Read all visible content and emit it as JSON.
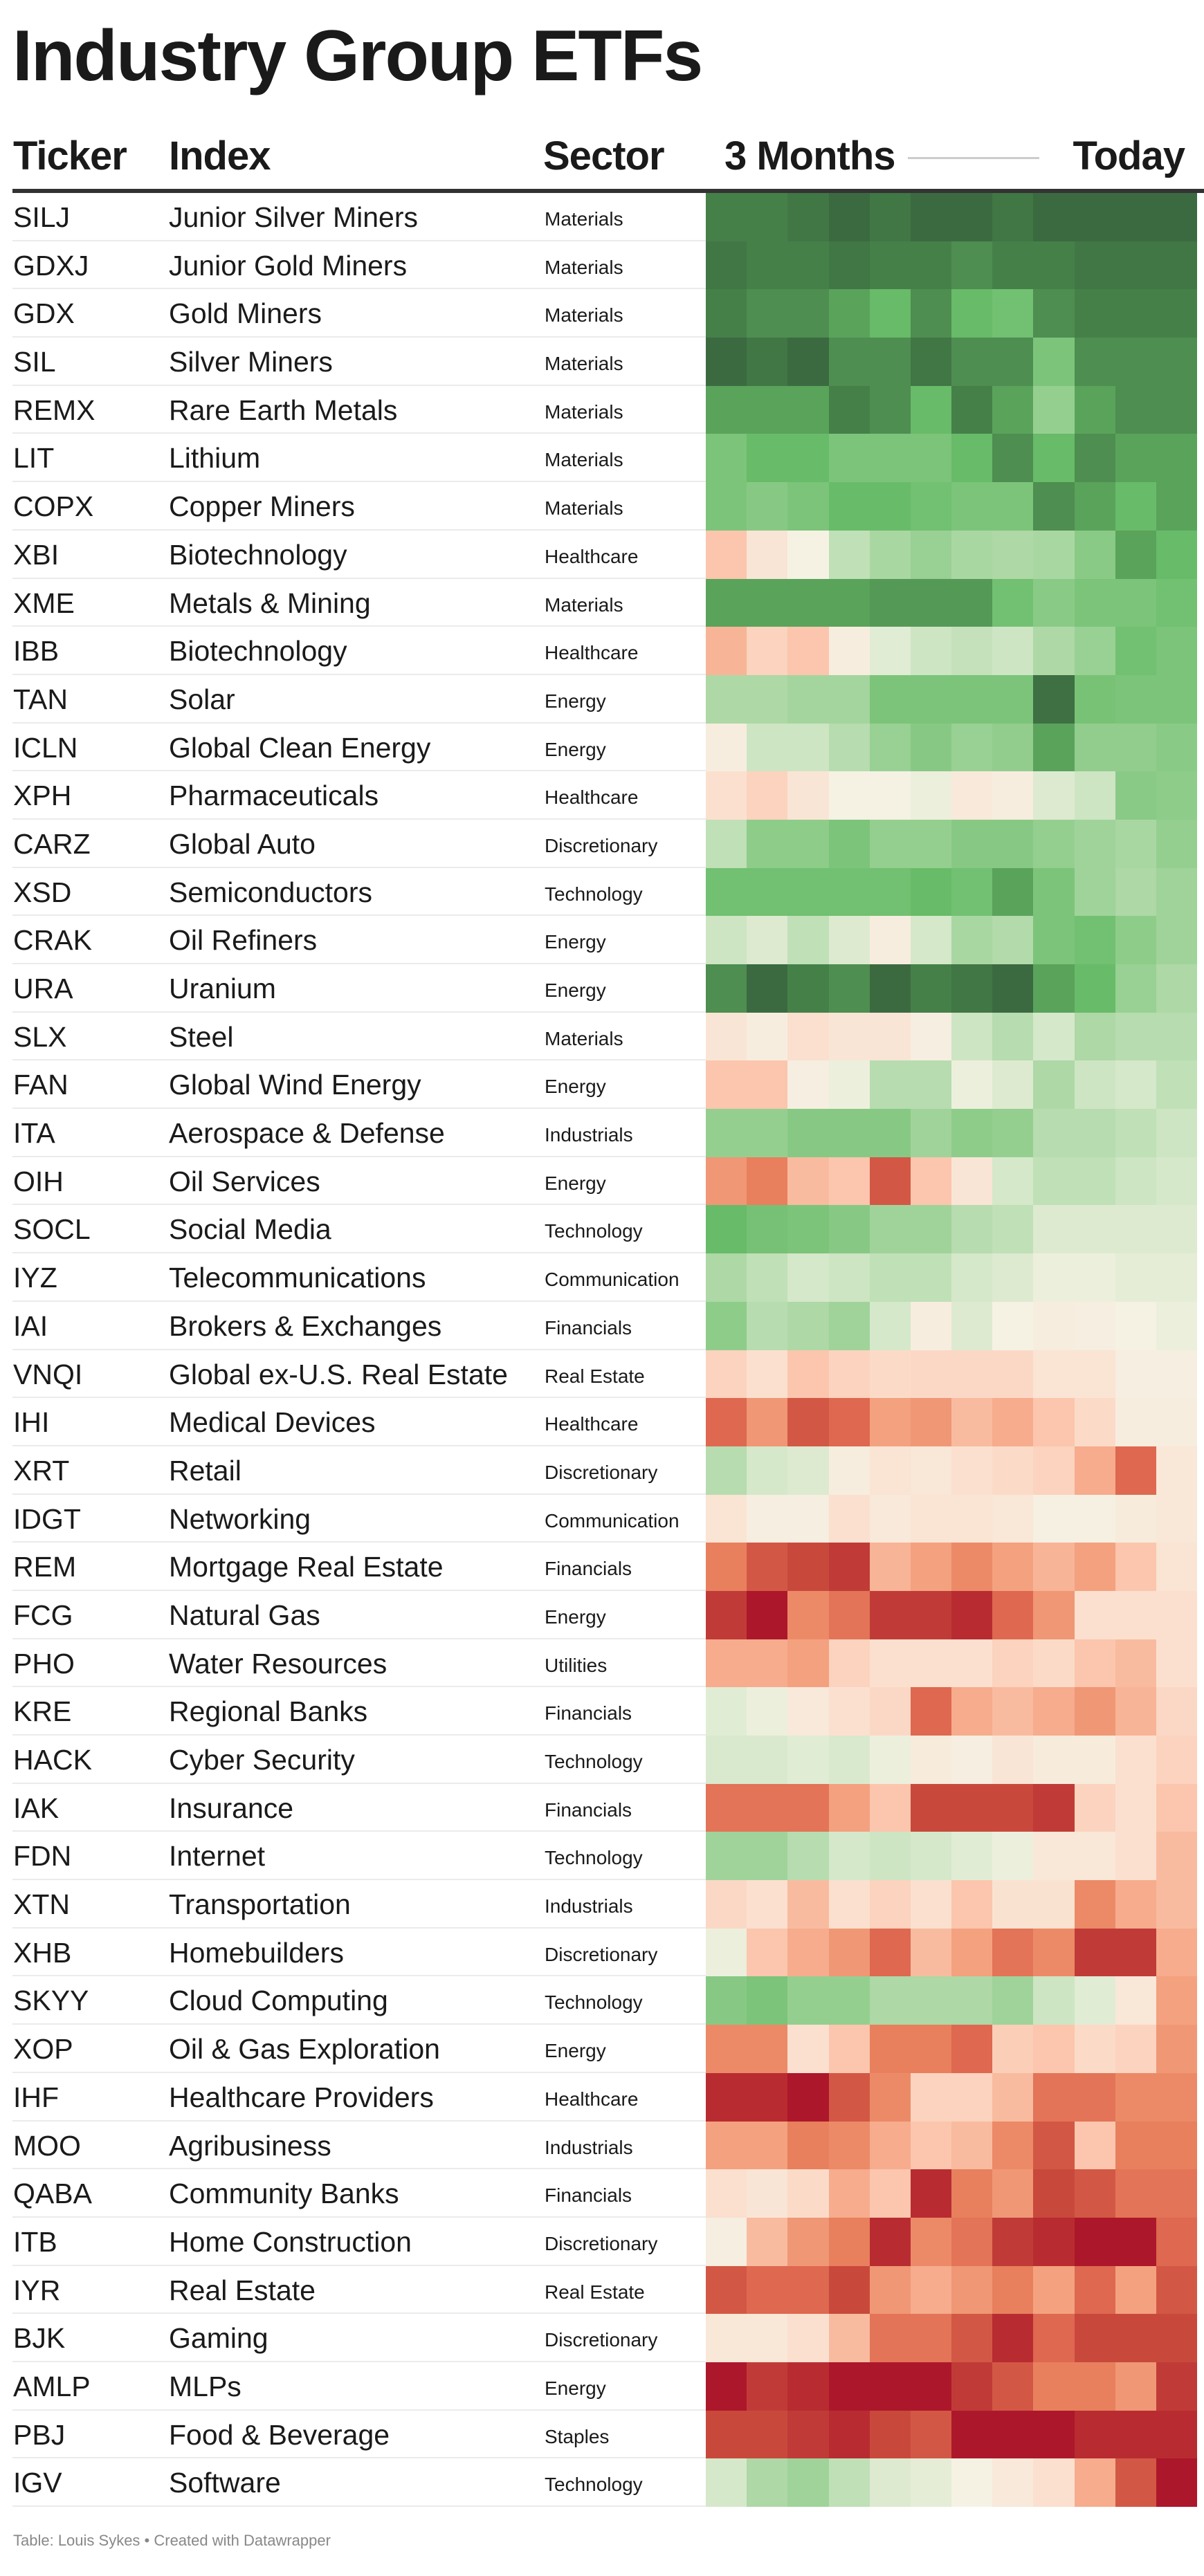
{
  "title": "Industry Group ETFs",
  "header": {
    "ticker": "Ticker",
    "index": "Index",
    "sector": "Sector",
    "start": "3 Months",
    "end": "Today"
  },
  "footer": "Table: Louis Sykes • Created with Datawrapper",
  "chart_data": {
    "type": "heatmap",
    "title": "Industry Group ETFs",
    "columns_from": "3 Months",
    "columns_to": "Today",
    "periods": 12,
    "color_scale": {
      "negative": "#ad172b",
      "neutral": "#f5f2e4",
      "positive": "#3b6a41"
    },
    "value_note_scale": [
      -9,
      9
    ],
    "rows": [
      {
        "ticker": "SILJ",
        "index": "Junior Silver Miners",
        "sector": "Materials",
        "values": [
          7,
          7,
          8,
          9,
          8,
          9,
          9,
          8,
          9,
          9,
          9,
          9
        ]
      },
      {
        "ticker": "GDXJ",
        "index": "Junior Gold Miners",
        "sector": "Materials",
        "values": [
          8,
          7,
          7,
          8,
          7,
          7,
          6,
          7,
          7,
          8,
          8,
          8
        ]
      },
      {
        "ticker": "GDX",
        "index": "Gold Miners",
        "sector": "Materials",
        "values": [
          7,
          6,
          6,
          5,
          4,
          6,
          4,
          3.5,
          6,
          7,
          7,
          7
        ]
      },
      {
        "ticker": "SIL",
        "index": "Silver Miners",
        "sector": "Materials",
        "values": [
          9,
          8,
          9,
          6,
          6,
          8,
          6,
          6,
          3,
          6,
          6,
          6
        ]
      },
      {
        "ticker": "REMX",
        "index": "Rare Earth Metals",
        "sector": "Materials",
        "values": [
          5,
          5,
          5,
          7,
          6,
          4,
          7,
          5,
          2.3,
          5,
          6,
          6
        ]
      },
      {
        "ticker": "LIT",
        "index": "Lithium",
        "sector": "Materials",
        "values": [
          3,
          4,
          4,
          3,
          3,
          3,
          4,
          6,
          4,
          6,
          5,
          5
        ]
      },
      {
        "ticker": "COPX",
        "index": "Copper Miners",
        "sector": "Materials",
        "values": [
          3,
          2.7,
          3,
          4,
          4,
          3.5,
          3,
          3,
          6,
          5,
          4,
          5
        ]
      },
      {
        "ticker": "XBI",
        "index": "Biotechnology",
        "sector": "Healthcare",
        "values": [
          -2,
          -0.7,
          0,
          1.3,
          1.8,
          2.2,
          1.8,
          1.7,
          1.8,
          2.6,
          5,
          4
        ]
      },
      {
        "ticker": "XME",
        "index": "Metals & Mining",
        "sector": "Materials",
        "values": [
          5,
          5,
          5,
          5,
          5.5,
          5.5,
          5.5,
          3.5,
          2.6,
          3,
          3,
          3.5
        ]
      },
      {
        "ticker": "IBB",
        "index": "Biotechnology",
        "sector": "Healthcare",
        "values": [
          -2.5,
          -1.5,
          -2,
          -0.3,
          0.5,
          1,
          1.2,
          1,
          1.7,
          2.2,
          3.5,
          3
        ]
      },
      {
        "ticker": "TAN",
        "index": "Solar",
        "sector": "Energy",
        "values": [
          1.7,
          1.7,
          1.9,
          1.9,
          3,
          3,
          3,
          3,
          8.5,
          3.2,
          3,
          3
        ]
      },
      {
        "ticker": "ICLN",
        "index": "Global Clean Energy",
        "sector": "Energy",
        "values": [
          -0.3,
          1,
          1,
          1.5,
          2.2,
          2.7,
          2.2,
          2.4,
          5,
          2.4,
          2.4,
          2.6
        ]
      },
      {
        "ticker": "XPH",
        "index": "Pharmaceuticals",
        "sector": "Healthcare",
        "values": [
          -1,
          -1.5,
          -0.7,
          0,
          0,
          0.2,
          -0.5,
          -0.3,
          0.6,
          1,
          2.6,
          2.5
        ]
      },
      {
        "ticker": "CARZ",
        "index": "Global Auto",
        "sector": "Discretionary",
        "values": [
          1.3,
          2.5,
          2.5,
          3,
          2.3,
          2.3,
          2.7,
          2.7,
          2.3,
          2,
          1.8,
          2.3
        ]
      },
      {
        "ticker": "XSD",
        "index": "Semiconductors",
        "sector": "Technology",
        "values": [
          3.5,
          3.5,
          3.5,
          3.5,
          3.5,
          4,
          3.5,
          5,
          3,
          2,
          1.7,
          2
        ]
      },
      {
        "ticker": "CRAK",
        "index": "Oil Refiners",
        "sector": "Energy",
        "values": [
          1,
          0.6,
          1.3,
          0.6,
          -0.3,
          0.8,
          1.8,
          1.6,
          3,
          3.5,
          2.5,
          2
        ]
      },
      {
        "ticker": "URA",
        "index": "Uranium",
        "sector": "Energy",
        "values": [
          6,
          9,
          7,
          6,
          9,
          7,
          8,
          9,
          5,
          4,
          2.2,
          1.7
        ]
      },
      {
        "ticker": "SLX",
        "index": "Steel",
        "sector": "Materials",
        "values": [
          -0.7,
          -0.3,
          -1,
          -0.7,
          -0.7,
          -0.2,
          1,
          1.5,
          0.8,
          1.7,
          1.5,
          1.5
        ]
      },
      {
        "ticker": "FAN",
        "index": "Global Wind Energy",
        "sector": "Energy",
        "values": [
          -2,
          -2,
          -0.2,
          0.2,
          1.5,
          1.5,
          0.2,
          0.6,
          1.7,
          1,
          0.8,
          1.3
        ]
      },
      {
        "ticker": "ITA",
        "index": "Aerospace & Defense",
        "sector": "Industrials",
        "values": [
          2.3,
          2.3,
          2.7,
          2.7,
          2.7,
          2,
          2.5,
          2.3,
          1.5,
          1.5,
          1.3,
          1
        ]
      },
      {
        "ticker": "OIH",
        "index": "Oil Services",
        "sector": "Energy",
        "values": [
          -3.3,
          -4,
          -2.3,
          -2,
          -6,
          -2,
          -0.7,
          0.8,
          1.3,
          1.3,
          1,
          0.8
        ]
      },
      {
        "ticker": "SOCL",
        "index": "Social Media",
        "sector": "Technology",
        "values": [
          4,
          3.3,
          3,
          2.7,
          2,
          2,
          1.5,
          1.3,
          0.6,
          0.6,
          0.6,
          0.6
        ]
      },
      {
        "ticker": "IYZ",
        "index": "Telecommunications",
        "sector": "Communication",
        "values": [
          1.7,
          1.3,
          0.8,
          1,
          1.3,
          1.3,
          0.8,
          0.6,
          0.2,
          0.2,
          0.4,
          0.4
        ]
      },
      {
        "ticker": "IAI",
        "index": "Brokers & Exchanges",
        "sector": "Financials",
        "values": [
          2.5,
          1.5,
          1.7,
          2,
          0.8,
          -0.3,
          0.6,
          0,
          -0.3,
          -0.2,
          0,
          0.2
        ]
      },
      {
        "ticker": "VNQI",
        "index": "Global ex-U.S. Real Estate",
        "sector": "Real Estate",
        "values": [
          -1.5,
          -1,
          -2,
          -1.5,
          -1.2,
          -1.3,
          -1.3,
          -1.3,
          -0.8,
          -0.8,
          -0.2,
          -0.2
        ]
      },
      {
        "ticker": "IHI",
        "index": "Medical Devices",
        "sector": "Healthcare",
        "values": [
          -5,
          -3.3,
          -6,
          -5,
          -3,
          -3.3,
          -2.3,
          -2.7,
          -2,
          -1.2,
          -0.3,
          -0.3
        ]
      },
      {
        "ticker": "XRT",
        "index": "Retail",
        "sector": "Discretionary",
        "values": [
          1.5,
          0.8,
          0.6,
          -0.3,
          -0.8,
          -0.6,
          -1,
          -1.2,
          -1.5,
          -2.7,
          -5,
          -0.6
        ]
      },
      {
        "ticker": "IDGT",
        "index": "Networking",
        "sector": "Communication",
        "values": [
          -0.8,
          -0.2,
          -0.2,
          -1,
          -0.5,
          -0.8,
          -0.8,
          -0.6,
          -0.1,
          -0.1,
          -0.4,
          -0.6
        ]
      },
      {
        "ticker": "REM",
        "index": "Mortgage Real Estate",
        "sector": "Financials",
        "values": [
          -4,
          -6,
          -7,
          -7.5,
          -2.5,
          -3,
          -3.7,
          -3,
          -2.5,
          -3,
          -2,
          -0.8
        ]
      },
      {
        "ticker": "FCG",
        "index": "Natural Gas",
        "sector": "Energy",
        "values": [
          -7.5,
          -9,
          -3.7,
          -4.5,
          -7.5,
          -7.5,
          -8,
          -5,
          -3.3,
          -1,
          -1,
          -1
        ]
      },
      {
        "ticker": "PHO",
        "index": "Water Resources",
        "sector": "Utilities",
        "values": [
          -2.7,
          -2.7,
          -3,
          -1.5,
          -1,
          -1,
          -1,
          -1.5,
          -1.2,
          -2,
          -2.3,
          -1
        ]
      },
      {
        "ticker": "KRE",
        "index": "Regional Banks",
        "sector": "Financials",
        "values": [
          0.5,
          0.2,
          -0.5,
          -1,
          -1.3,
          -5,
          -2.7,
          -2.3,
          -2.7,
          -3.3,
          -2.5,
          -1.3
        ]
      },
      {
        "ticker": "HACK",
        "index": "Cyber Security",
        "sector": "Technology",
        "values": [
          0.7,
          0.7,
          0.5,
          0.7,
          0.2,
          -0.4,
          -0.2,
          -0.7,
          -0.4,
          -0.4,
          -1,
          -1.5
        ]
      },
      {
        "ticker": "IAK",
        "index": "Insurance",
        "sector": "Financials",
        "values": [
          -4.5,
          -4.5,
          -4.5,
          -3,
          -2,
          -7,
          -7,
          -7,
          -7.5,
          -1.5,
          -1,
          -2
        ]
      },
      {
        "ticker": "FDN",
        "index": "Internet",
        "sector": "Technology",
        "values": [
          2,
          2,
          1.5,
          0.8,
          1,
          0.8,
          0.5,
          0.2,
          -0.6,
          -0.6,
          -1,
          -2.3
        ]
      },
      {
        "ticker": "XTN",
        "index": "Transportation",
        "sector": "Industrials",
        "values": [
          -1.3,
          -1,
          -2.3,
          -1,
          -1.5,
          -1,
          -2,
          -0.9,
          -0.9,
          -3.7,
          -2.7,
          -2.3
        ]
      },
      {
        "ticker": "XHB",
        "index": "Homebuilders",
        "sector": "Discretionary",
        "values": [
          0.2,
          -2,
          -2.7,
          -3.3,
          -5,
          -2.3,
          -3,
          -4.5,
          -3.7,
          -7.5,
          -7.5,
          -2.7
        ]
      },
      {
        "ticker": "SKYY",
        "index": "Cloud Computing",
        "sector": "Technology",
        "values": [
          2.7,
          3,
          2.3,
          2.3,
          1.7,
          1.7,
          1.7,
          2,
          1,
          0.5,
          -0.6,
          -3
        ]
      },
      {
        "ticker": "XOP",
        "index": "Oil & Gas Exploration",
        "sector": "Energy",
        "values": [
          -3.7,
          -3.7,
          -1,
          -2,
          -4,
          -4,
          -5,
          -1.7,
          -2,
          -1.2,
          -1.5,
          -3.3
        ]
      },
      {
        "ticker": "IHF",
        "index": "Healthcare Providers",
        "sector": "Healthcare",
        "values": [
          -8,
          -8,
          -9,
          -6,
          -3.7,
          -1.5,
          -1.5,
          -2.3,
          -4.5,
          -4.5,
          -3.7,
          -3.7
        ]
      },
      {
        "ticker": "MOO",
        "index": "Agribusiness",
        "sector": "Industrials",
        "values": [
          -3,
          -3,
          -4,
          -3.7,
          -2.7,
          -2,
          -2.3,
          -3.7,
          -6,
          -2,
          -4,
          -4
        ]
      },
      {
        "ticker": "QABA",
        "index": "Community Banks",
        "sector": "Financials",
        "values": [
          -1,
          -0.7,
          -1.2,
          -2.7,
          -2,
          -8,
          -4,
          -3.3,
          -7,
          -6,
          -4.5,
          -4.5
        ]
      },
      {
        "ticker": "ITB",
        "index": "Home Construction",
        "sector": "Discretionary",
        "values": [
          -0.2,
          -2.3,
          -3.3,
          -4,
          -8,
          -3.7,
          -4.5,
          -7.5,
          -8,
          -9,
          -9,
          -5
        ]
      },
      {
        "ticker": "IYR",
        "index": "Real Estate",
        "sector": "Real Estate",
        "values": [
          -6,
          -5,
          -5,
          -7,
          -3.3,
          -2.7,
          -3.3,
          -4,
          -3,
          -5,
          -3,
          -6
        ]
      },
      {
        "ticker": "BJK",
        "index": "Gaming",
        "sector": "Discretionary",
        "values": [
          -0.6,
          -0.6,
          -1,
          -2.3,
          -4.5,
          -4.5,
          -6,
          -8,
          -5,
          -7,
          -7,
          -7
        ]
      },
      {
        "ticker": "AMLP",
        "index": "MLPs",
        "sector": "Energy",
        "values": [
          -9,
          -7.5,
          -8,
          -9,
          -9,
          -9,
          -7.5,
          -6,
          -4,
          -4,
          -3.3,
          -7.5
        ]
      },
      {
        "ticker": "PBJ",
        "index": "Food & Beverage",
        "sector": "Staples",
        "values": [
          -7,
          -7,
          -7.5,
          -8,
          -7,
          -6,
          -9,
          -9,
          -9,
          -8,
          -8,
          -8
        ]
      },
      {
        "ticker": "IGV",
        "index": "Software",
        "sector": "Technology",
        "values": [
          0.8,
          1.7,
          2,
          1.3,
          0.6,
          0.4,
          0,
          -0.5,
          -1,
          -2.7,
          -6,
          -9
        ]
      }
    ]
  }
}
